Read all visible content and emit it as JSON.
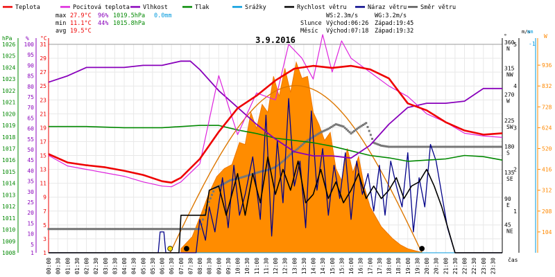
{
  "chart_data": {
    "type": "line",
    "title": "3.9.2016",
    "legend": [
      {
        "label": "Teplota",
        "color": "#ee0000"
      },
      {
        "label": "Pocitová teplota",
        "color": "#dd22dd"
      },
      {
        "label": "Vlhkost",
        "color": "#8800bb"
      },
      {
        "label": "Tlak",
        "color": "#008800"
      },
      {
        "label": "Srážky",
        "color": "#0099dd"
      },
      {
        "label": "Rychlost větru",
        "color": "#000000"
      },
      {
        "label": "Náraz větru",
        "color": "#000088"
      },
      {
        "label": "Směr větru",
        "color": "#555555"
      }
    ],
    "stats": [
      {
        "label": "max",
        "temp": "27.9°C",
        "hum": "96%",
        "press": "1019.5hPa",
        "rain": "0.0mm"
      },
      {
        "label": "min",
        "temp": "11.1°C",
        "hum": "44%",
        "press": "1015.8hPa",
        "rain": ""
      },
      {
        "label": "avg",
        "temp": "19.5°C",
        "hum": "",
        "press": "",
        "rain": ""
      }
    ],
    "wind_info": {
      "ws": "WS:2.3m/s",
      "wg": "WG:3.2m/s"
    },
    "sun": {
      "label": "Slunce",
      "rise": "Východ:06:26",
      "set": "Západ:19:45"
    },
    "moon": {
      "label": "Měsíc",
      "rise": "Východ:07:18",
      "set": "Západ:19:32"
    },
    "axes": {
      "xlabel": "čas",
      "hpa": {
        "unit": "hPa",
        "ticks": [
          1026,
          1025,
          1024,
          1023,
          1022,
          1021,
          1020,
          1019,
          1018,
          1017,
          1016,
          1015,
          1014,
          1013,
          1012,
          1011,
          1010,
          1009,
          1008
        ]
      },
      "pct": {
        "unit": "%",
        "ticks": [
          100,
          95,
          90,
          85,
          80,
          75,
          70,
          65,
          60,
          55,
          50,
          45,
          40,
          35,
          30,
          25,
          20,
          15,
          10,
          5,
          1
        ]
      },
      "temp": {
        "unit": "°C",
        "ticks": [
          31,
          29,
          27,
          25,
          23,
          21,
          19,
          17,
          15,
          13,
          11,
          9,
          7,
          5,
          3,
          1
        ]
      },
      "dir": {
        "unit": "°",
        "ticks": [
          {
            "v": "360",
            "d": "N"
          },
          {
            "v": "315",
            "d": "NW"
          },
          {
            "v": "270",
            "d": "W"
          },
          {
            "v": "225",
            "d": "SW"
          },
          {
            "v": "180",
            "d": "S"
          },
          {
            "v": "135",
            "d": "SE"
          },
          {
            "v": "90",
            "d": "E"
          },
          {
            "v": "45",
            "d": "NE"
          },
          {
            "v": "0",
            "d": ""
          }
        ]
      },
      "ms": {
        "unit": "m/s",
        "ticks": [
          "5",
          "4",
          "3",
          "2",
          "1"
        ]
      },
      "mm": {
        "unit": "mm",
        "ticks": [
          "1"
        ]
      },
      "wm2": {
        "unit": "W",
        "ticks": [
          "936",
          "832",
          "728",
          "624",
          "520",
          "416",
          "312",
          "208",
          "104"
        ]
      }
    },
    "time_labels": [
      "00:00",
      "00:30",
      "01:00",
      "01:30",
      "02:00",
      "02:30",
      "03:00",
      "03:30",
      "04:00",
      "04:30",
      "05:00",
      "05:30",
      "06:00",
      "06:30",
      "07:00",
      "07:30",
      "08:00",
      "08:30",
      "09:00",
      "09:30",
      "10:00",
      "10:30",
      "11:00",
      "11:30",
      "12:00",
      "12:30",
      "13:00",
      "13:30",
      "14:00",
      "14:30",
      "15:00",
      "15:30",
      "16:00",
      "16:30",
      "17:00",
      "17:30",
      "18:00",
      "18:30",
      "19:00",
      "19:30",
      "20:00",
      "20:30",
      "21:00",
      "21:30",
      "22:00",
      "22:30",
      "23:00",
      "23:30"
    ],
    "series": [
      {
        "name": "Teplota",
        "x": [
          0,
          1,
          2,
          3,
          4,
          5,
          6,
          6.5,
          7,
          8,
          9,
          10,
          11,
          12,
          13,
          14,
          15,
          16,
          17,
          18,
          19,
          20,
          21,
          22,
          23,
          24
        ],
        "y": [
          15.2,
          14,
          13.6,
          13.3,
          12.8,
          12.2,
          11.3,
          11.1,
          11.8,
          14.5,
          18.4,
          21.8,
          23.6,
          25.8,
          27.5,
          27.9,
          27.6,
          27.9,
          27.4,
          26.1,
          22.5,
          21.5,
          19.8,
          18.6,
          18.0,
          18.2
        ]
      },
      {
        "name": "Pocitová teplota",
        "x": [
          0,
          1,
          2,
          3,
          4,
          5,
          6,
          6.5,
          7,
          8,
          9,
          10,
          11,
          12,
          12.7,
          13.4,
          14,
          14.5,
          15,
          15.5,
          16,
          17,
          18,
          19,
          20,
          21,
          22,
          23,
          24
        ],
        "y": [
          15,
          13.5,
          13,
          12.5,
          12,
          11.2,
          10.6,
          10.5,
          11.2,
          13.8,
          26.5,
          18,
          24,
          23,
          31,
          29,
          26,
          32.4,
          27,
          31.5,
          29,
          27,
          25,
          23.5,
          21,
          19.8,
          18.2,
          17.8,
          17.6
        ]
      },
      {
        "name": "Vlhkost",
        "x": [
          0,
          1,
          2,
          3,
          4,
          5,
          6,
          7,
          7.5,
          8,
          9,
          10,
          11,
          12,
          13,
          14,
          15,
          16,
          17,
          18,
          19,
          20,
          21,
          22,
          23,
          24
        ],
        "y": [
          82,
          85,
          89,
          89,
          89,
          90,
          90,
          92,
          92,
          88,
          78,
          70,
          62,
          55,
          49,
          47,
          47,
          46,
          52,
          62,
          70,
          72,
          72,
          73,
          79,
          79
        ]
      },
      {
        "name": "Tlak",
        "x": [
          0,
          2,
          4,
          6,
          8,
          9,
          10,
          11,
          12,
          13,
          14,
          15,
          16,
          17,
          18,
          19,
          20,
          21,
          22,
          23,
          24
        ],
        "y": [
          1018.9,
          1018.9,
          1018.8,
          1018.8,
          1019.0,
          1019.0,
          1018.6,
          1018.3,
          1017.9,
          1017.7,
          1017.5,
          1017.2,
          1016.8,
          1016.4,
          1016.2,
          1015.9,
          1016.0,
          1016.1,
          1016.4,
          1016.3,
          1016.0
        ]
      },
      {
        "name": "Rychlost větru",
        "x": [
          0,
          6.9,
          7.0,
          8.3,
          8.5,
          9.0,
          9.4,
          10,
          10.4,
          10.8,
          11.2,
          11.6,
          12,
          12.4,
          12.8,
          13.2,
          13.6,
          14,
          14.4,
          14.8,
          15.2,
          15.6,
          16,
          16.4,
          16.8,
          17.2,
          17.6,
          18,
          18.4,
          18.8,
          19.2,
          19.6,
          20,
          20.4,
          20.8,
          21.5,
          24
        ],
        "y": [
          0,
          0,
          0.9,
          0.9,
          1.5,
          1.6,
          0.9,
          1.9,
          0.9,
          1.9,
          1.2,
          2.3,
          1.4,
          2.0,
          1.5,
          2.2,
          1.2,
          1.4,
          2.0,
          1.3,
          1.7,
          1.2,
          1.5,
          1.9,
          1.3,
          1.6,
          1.3,
          1.5,
          1.8,
          1.3,
          1.6,
          1.7,
          2.0,
          1.6,
          1.1,
          0,
          0
        ]
      },
      {
        "name": "Náraz větru",
        "x": [
          0,
          5.8,
          5.9,
          6.1,
          6.2,
          7.8,
          8.0,
          8.3,
          8.5,
          8.8,
          9.2,
          9.5,
          9.8,
          10.1,
          10.4,
          10.8,
          11.2,
          11.5,
          11.8,
          12.1,
          12.4,
          12.7,
          13.0,
          13.3,
          13.6,
          13.9,
          14.2,
          14.5,
          14.8,
          15.1,
          15.4,
          15.7,
          16.0,
          16.3,
          16.6,
          16.9,
          17.2,
          17.5,
          17.8,
          18.1,
          18.4,
          18.7,
          19.0,
          19.3,
          19.6,
          19.9,
          20.2,
          20.5,
          20.8,
          21.1,
          21.5,
          24
        ],
        "y": [
          0,
          0,
          0.5,
          0.5,
          0,
          0,
          0.8,
          0.3,
          1.1,
          0.5,
          1.8,
          0.6,
          2.1,
          0.9,
          1.4,
          2.3,
          0.8,
          3.3,
          0.4,
          2.7,
          1.2,
          3.7,
          1.6,
          2.2,
          0.6,
          3.4,
          1.5,
          2.5,
          0.9,
          2.1,
          1.3,
          2.4,
          0.8,
          2.2,
          1.4,
          1.9,
          1.0,
          2.1,
          0.9,
          2.2,
          1.6,
          1.1,
          2.4,
          0.5,
          1.8,
          1.1,
          2.6,
          2.2,
          1.4,
          0.6,
          0,
          0
        ]
      },
      {
        "name": "Směr větru",
        "x": [
          0,
          8.0,
          8.4,
          8.8,
          9.2,
          9.6,
          10,
          10.4,
          10.8,
          11.2,
          11.6,
          12,
          12.4,
          12.8,
          13.2,
          13.6,
          14,
          14.4,
          14.8,
          15.2,
          15.6,
          16,
          16.4,
          16.8,
          17.2,
          17.6,
          18,
          19,
          20,
          21,
          22,
          23,
          24
        ],
        "y": [
          41,
          41,
          82,
          112,
          118,
          125,
          128,
          132,
          136,
          140,
          143,
          148,
          158,
          170,
          180,
          192,
          200,
          208,
          214,
          222,
          218,
          206,
          216,
          224,
          190,
          185,
          183,
          183,
          183,
          183,
          183,
          183,
          183
        ]
      },
      {
        "name": "Srážky",
        "x": [
          0,
          24
        ],
        "y": [
          0,
          0
        ]
      }
    ],
    "solar": {
      "x": [
        7.0,
        7.6,
        8.1,
        8.5,
        8.9,
        9.3,
        9.7,
        10.1,
        10.4,
        10.7,
        11.0,
        11.3,
        11.6,
        11.9,
        12.2,
        12.5,
        12.8,
        13.1,
        13.4,
        13.7,
        14.0,
        14.3,
        14.6,
        14.9,
        15.2,
        15.5,
        15.8,
        16.1,
        16.4,
        16.7,
        17.0,
        17.3,
        17.6,
        17.9,
        18.2,
        18.6,
        19.0,
        19.4,
        19.8
      ],
      "y": [
        20,
        80,
        200,
        300,
        380,
        420,
        440,
        550,
        540,
        700,
        620,
        740,
        700,
        880,
        780,
        920,
        800,
        950,
        870,
        880,
        700,
        640,
        560,
        600,
        420,
        360,
        520,
        400,
        480,
        330,
        230,
        180,
        130,
        100,
        70,
        40,
        20,
        10,
        0
      ]
    },
    "sun_curve_peak_wm2": 834,
    "markers": [
      {
        "kind": "sunrise",
        "x": 6.43,
        "color": "#ffdd00"
      },
      {
        "kind": "sunset",
        "x": 19.75,
        "color": "#000000"
      },
      {
        "kind": "moonrise",
        "x": 7.3,
        "color": "#000000"
      }
    ]
  }
}
